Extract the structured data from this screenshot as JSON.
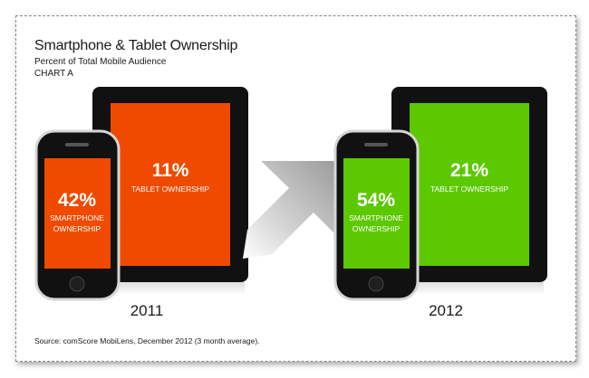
{
  "chart_data": {
    "type": "infographic",
    "title": "Smartphone & Tablet Ownership",
    "subtitle": "Percent of Total Mobile Audience",
    "chart_label": "CHART A",
    "source": "Source: comScore MobiLens, December 2012 (3 month average).",
    "colors": {
      "2011": "#f04a00",
      "2012": "#5cc800",
      "arrow": "#a8a8a8",
      "device": "#111111"
    },
    "periods": [
      {
        "year": "2011",
        "smartphone": {
          "value": 42,
          "label": "42%",
          "caption_line1": "SMARTPHONE",
          "caption_line2": "OWNERSHIP"
        },
        "tablet": {
          "value": 11,
          "label": "11%",
          "caption": "TABLET OWNERSHIP"
        }
      },
      {
        "year": "2012",
        "smartphone": {
          "value": 54,
          "label": "54%",
          "caption_line1": "SMARTPHONE",
          "caption_line2": "OWNERSHIP"
        },
        "tablet": {
          "value": 21,
          "label": "21%",
          "caption": "TABLET OWNERSHIP"
        }
      }
    ]
  }
}
